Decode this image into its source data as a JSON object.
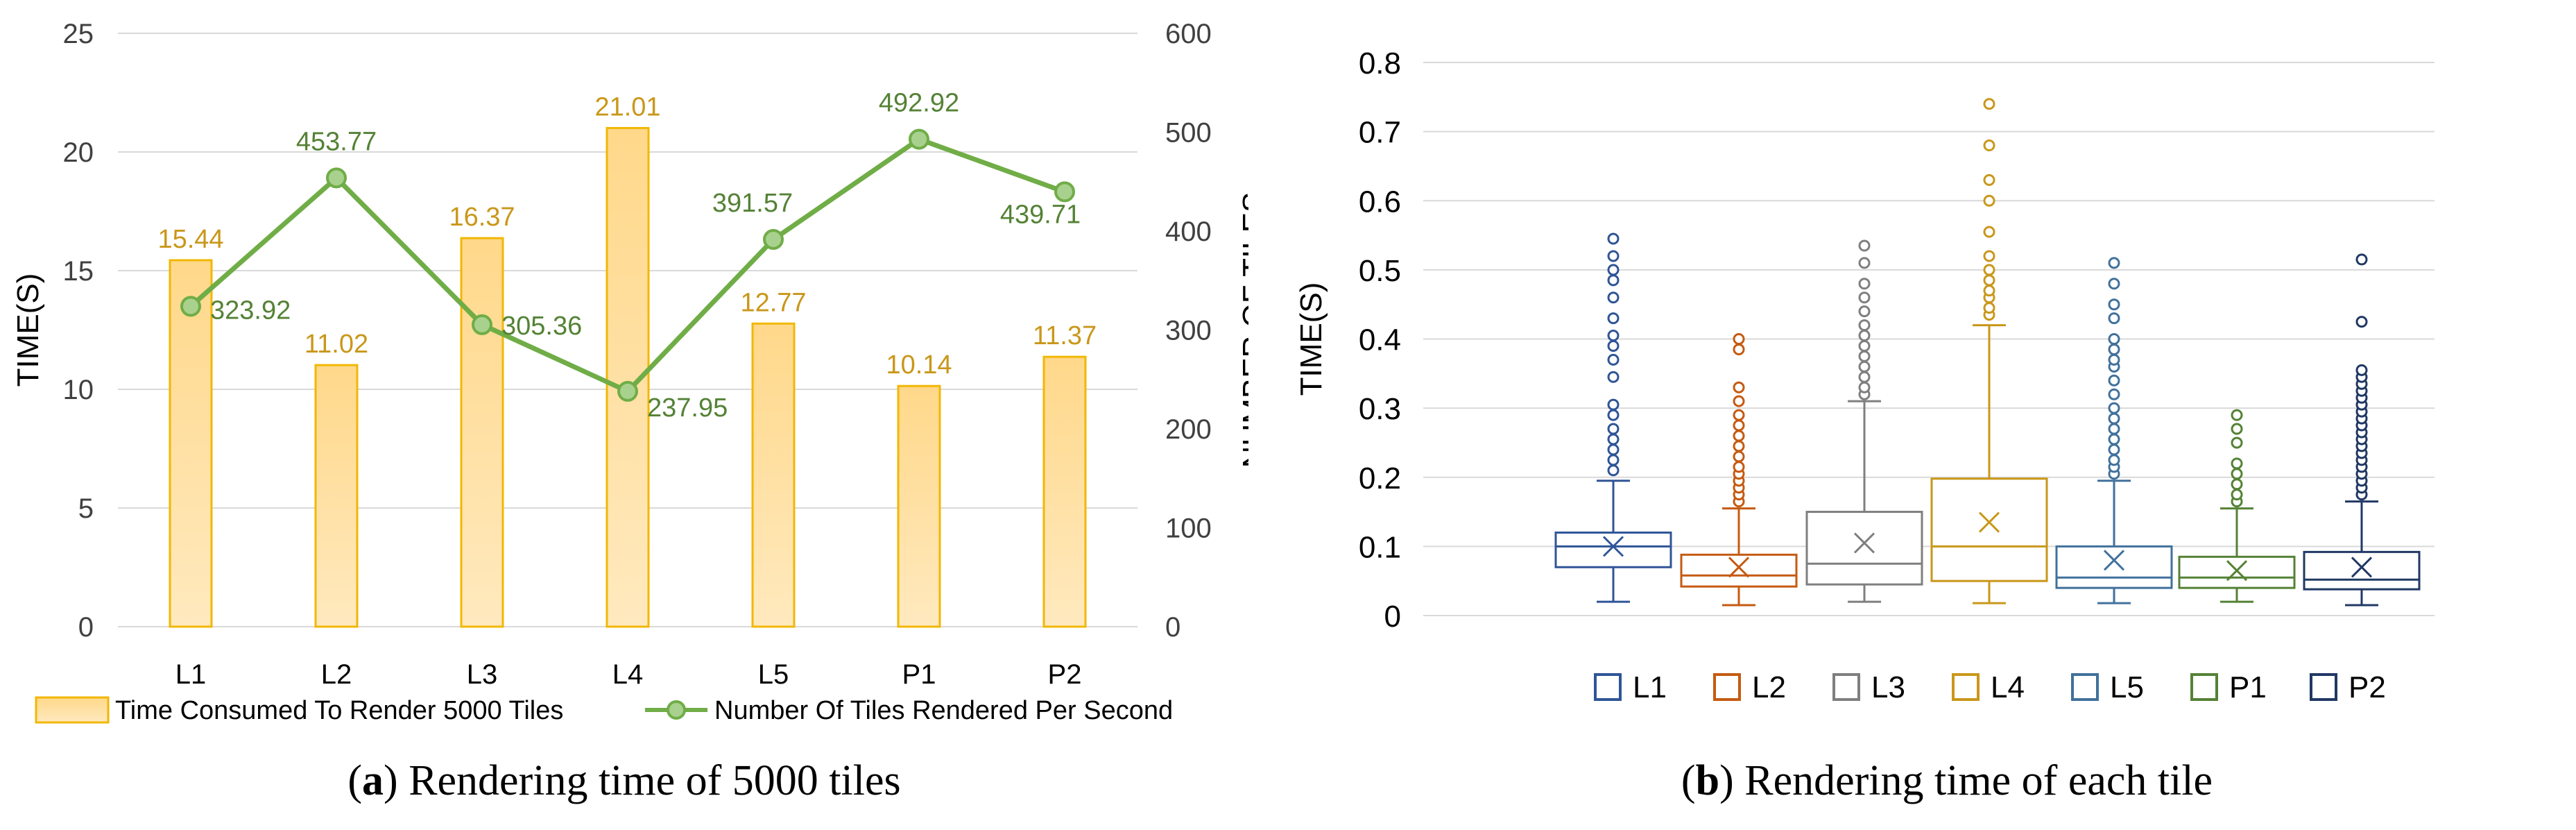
{
  "chart_data": [
    {
      "type": "bar+line",
      "categories": [
        "L1",
        "L2",
        "L3",
        "L4",
        "L5",
        "P1",
        "P2"
      ],
      "series": [
        {
          "name": "Time Consumed To Render 5000 Tiles",
          "kind": "bar",
          "axis": "left",
          "values": [
            15.44,
            11.02,
            16.37,
            21.01,
            12.77,
            10.14,
            11.37
          ],
          "labels": [
            "15.44",
            "11.02",
            "16.37",
            "21.01",
            "12.77",
            "10.14",
            "11.37"
          ]
        },
        {
          "name": "Number Of Tiles Rendered Per Second",
          "kind": "line",
          "axis": "right",
          "values": [
            323.92,
            453.77,
            305.36,
            237.95,
            391.57,
            492.92,
            439.71
          ],
          "labels": [
            "323.92",
            "453.77",
            "305.36",
            "237.95",
            "391.57",
            "492.92",
            "439.71"
          ]
        }
      ],
      "ylabel": "TIME(S)",
      "ylabel_right": "NUMBER OF TILES",
      "ylim": [
        0,
        25
      ],
      "ylim_right": [
        0,
        600
      ],
      "yticks": [
        "0",
        "5",
        "10",
        "15",
        "20",
        "25"
      ],
      "yticks_right": [
        "0",
        "100",
        "200",
        "300",
        "400",
        "500",
        "600"
      ],
      "grid": true,
      "legend": "bottom",
      "colors": {
        "bar_fill_top": "#ffd88a",
        "bar_fill_bottom": "#ffe9be",
        "bar_edge": "#f2b705",
        "bar_label": "#c9971a",
        "line": "#70ad47",
        "marker_fill": "#a9d18e",
        "line_label": "#548235",
        "grid": "#d9d9d9",
        "axis_text": "#404040"
      }
    },
    {
      "type": "boxplot",
      "categories": [
        "L1",
        "L2",
        "L3",
        "L4",
        "L5",
        "P1",
        "P2"
      ],
      "ylabel": "TIME(S)",
      "ylim": [
        0,
        0.8
      ],
      "yticks": [
        "0",
        "0.1",
        "0.2",
        "0.3",
        "0.4",
        "0.5",
        "0.6",
        "0.7",
        "0.8"
      ],
      "grid": true,
      "legend": "bottom",
      "boxes": [
        {
          "name": "L1",
          "color": "#2f5597",
          "whisker_low": 0.02,
          "q1": 0.07,
          "median": 0.1,
          "q3": 0.12,
          "whisker_high": 0.195,
          "mean": 0.1,
          "outliers": [
            0.21,
            0.225,
            0.24,
            0.255,
            0.27,
            0.29,
            0.305,
            0.345,
            0.37,
            0.39,
            0.405,
            0.43,
            0.46,
            0.485,
            0.5,
            0.52,
            0.545
          ]
        },
        {
          "name": "L2",
          "color": "#c55a11",
          "whisker_low": 0.015,
          "q1": 0.042,
          "median": 0.058,
          "q3": 0.088,
          "whisker_high": 0.155,
          "mean": 0.07,
          "outliers": [
            0.165,
            0.175,
            0.185,
            0.195,
            0.205,
            0.215,
            0.23,
            0.245,
            0.26,
            0.275,
            0.29,
            0.31,
            0.33,
            0.385,
            0.4
          ]
        },
        {
          "name": "L3",
          "color": "#7f7f7f",
          "whisker_low": 0.02,
          "q1": 0.045,
          "median": 0.075,
          "q3": 0.15,
          "whisker_high": 0.31,
          "mean": 0.105,
          "outliers": [
            0.32,
            0.33,
            0.345,
            0.36,
            0.375,
            0.39,
            0.405,
            0.42,
            0.44,
            0.46,
            0.48,
            0.51,
            0.535
          ]
        },
        {
          "name": "L4",
          "color": "#c9971a",
          "whisker_low": 0.018,
          "q1": 0.05,
          "median": 0.1,
          "q3": 0.198,
          "whisker_high": 0.42,
          "mean": 0.135,
          "outliers": [
            0.435,
            0.445,
            0.46,
            0.47,
            0.485,
            0.5,
            0.52,
            0.555,
            0.6,
            0.63,
            0.68,
            0.74
          ]
        },
        {
          "name": "L5",
          "color": "#41719c",
          "whisker_low": 0.018,
          "q1": 0.04,
          "median": 0.055,
          "q3": 0.1,
          "whisker_high": 0.195,
          "mean": 0.08,
          "outliers": [
            0.205,
            0.215,
            0.225,
            0.24,
            0.255,
            0.27,
            0.285,
            0.3,
            0.32,
            0.34,
            0.36,
            0.37,
            0.385,
            0.4,
            0.43,
            0.45,
            0.48,
            0.51
          ]
        },
        {
          "name": "P1",
          "color": "#548235",
          "whisker_low": 0.02,
          "q1": 0.04,
          "median": 0.055,
          "q3": 0.085,
          "whisker_high": 0.155,
          "mean": 0.065,
          "outliers": [
            0.165,
            0.175,
            0.19,
            0.205,
            0.22,
            0.25,
            0.27,
            0.29
          ]
        },
        {
          "name": "P2",
          "color": "#203864",
          "whisker_low": 0.015,
          "q1": 0.038,
          "median": 0.052,
          "q3": 0.092,
          "whisker_high": 0.165,
          "mean": 0.07,
          "outliers": [
            0.175,
            0.185,
            0.195,
            0.205,
            0.215,
            0.225,
            0.235,
            0.245,
            0.255,
            0.265,
            0.275,
            0.285,
            0.295,
            0.305,
            0.315,
            0.325,
            0.335,
            0.345,
            0.355,
            0.425,
            0.515
          ]
        }
      ]
    }
  ],
  "captions": {
    "a_letter": "a",
    "a_text": " Rendering time of 5000 tiles",
    "b_letter": "b",
    "b_text": " Rendering time of each tile"
  }
}
